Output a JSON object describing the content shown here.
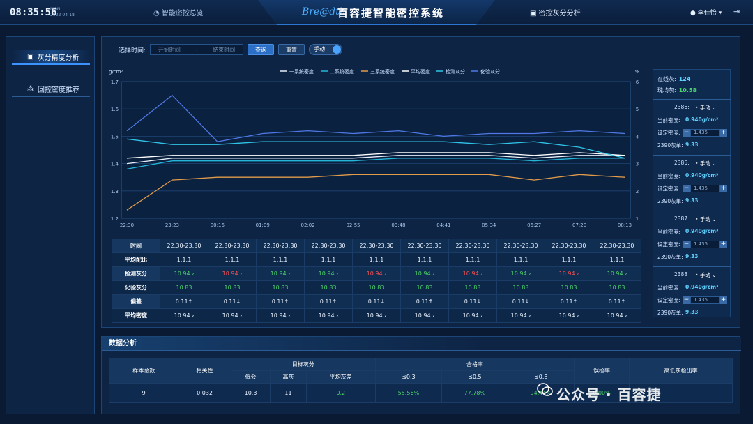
{
  "header": {
    "time": "08:35:56",
    "day": "MON.",
    "date": "2022-04-18",
    "nav_left": "智能密控总览",
    "logo_text": "Bre@dth",
    "app_title": "百容捷智能密控系统",
    "nav_right": "密控灰分分析",
    "user": "李佳怡"
  },
  "sidebar": {
    "items": [
      {
        "label": "灰分精度分析",
        "icon": "monitor-icon",
        "active": true
      },
      {
        "label": "回控密度推荐",
        "icon": "nodes-icon",
        "active": false
      }
    ]
  },
  "filter": {
    "label": "选择时间:",
    "start_placeholder": "开始时间",
    "separator": "-",
    "end_placeholder": "结束时间",
    "query": "查询",
    "reset": "重置",
    "mode": "手动"
  },
  "chart_data": {
    "type": "line",
    "ylabel": "g/cm³",
    "y2label": "%",
    "ylim": [
      1.2,
      1.7
    ],
    "y2lim": [
      1,
      6
    ],
    "yticks": [
      1.2,
      1.3,
      1.4,
      1.5,
      1.6,
      1.7
    ],
    "y2ticks": [
      1,
      2,
      3,
      4,
      5,
      6
    ],
    "categories": [
      "22:30",
      "23:23",
      "00:16",
      "01:09",
      "02:02",
      "02:55",
      "03:48",
      "04:41",
      "05:34",
      "06:27",
      "07:20",
      "08:13"
    ],
    "series": [
      {
        "name": "一系统密度",
        "color": "#e6eef9",
        "axis": "left",
        "values": [
          1.4,
          1.42,
          1.42,
          1.42,
          1.42,
          1.42,
          1.43,
          1.43,
          1.43,
          1.42,
          1.43,
          1.43
        ]
      },
      {
        "name": "二系统密度",
        "color": "#24b6d9",
        "axis": "left",
        "values": [
          1.38,
          1.41,
          1.41,
          1.41,
          1.41,
          1.41,
          1.42,
          1.42,
          1.42,
          1.41,
          1.42,
          1.42
        ]
      },
      {
        "name": "三系统密度",
        "color": "#e29b4a",
        "axis": "left",
        "values": [
          1.23,
          1.34,
          1.35,
          1.35,
          1.35,
          1.36,
          1.36,
          1.36,
          1.36,
          1.34,
          1.36,
          1.35
        ]
      },
      {
        "name": "平均密度",
        "color": "#ffffff",
        "axis": "left",
        "values": [
          1.42,
          1.43,
          1.43,
          1.43,
          1.43,
          1.43,
          1.44,
          1.44,
          1.44,
          1.43,
          1.44,
          1.43
        ]
      },
      {
        "name": "检测灰分",
        "color": "#30c4e8",
        "axis": "right",
        "values": [
          3.9,
          3.7,
          3.7,
          3.8,
          3.8,
          3.8,
          3.8,
          3.8,
          3.7,
          3.8,
          3.6,
          3.2
        ]
      },
      {
        "name": "化验灰分",
        "color": "#4f78e6",
        "axis": "right",
        "values": [
          4.2,
          5.5,
          3.8,
          4.1,
          4.2,
          4.1,
          4.2,
          4.0,
          4.1,
          4.1,
          4.2,
          4.1
        ]
      }
    ]
  },
  "stats": {
    "online_label": "在线灰:",
    "online_value": "124",
    "lab_label": "瑰均灰:",
    "lab_value": "10.58",
    "machines": [
      {
        "id": "2386:",
        "mode": "手动",
        "cur_label": "当前密度:",
        "cur_value": "0.940g/cm³",
        "set_label": "设定密度:",
        "set_value": "1.435",
        "ash_label": "2390灰单:",
        "ash_value": "9.33"
      },
      {
        "id": "2386:",
        "mode": "手动",
        "cur_label": "当前密度:",
        "cur_value": "0.940g/cm³",
        "set_label": "设定密度:",
        "set_value": "1.435",
        "ash_label": "2390灰单:",
        "ash_value": "9.33"
      },
      {
        "id": "2387",
        "mode": "手动",
        "cur_label": "当前密度:",
        "cur_value": "0.940g/cm³",
        "set_label": "设定密度:",
        "set_value": "1.435",
        "ash_label": "2390灰单:",
        "ash_value": "9.33"
      },
      {
        "id": "2388",
        "mode": "手动",
        "cur_label": "当前密度:",
        "cur_value": "0.940g/cm³",
        "set_label": "设定密度:",
        "set_value": "1.435",
        "ash_label": "2390灰单:",
        "ash_value": "9.33"
      }
    ]
  },
  "grid": {
    "row_headers": [
      "时间",
      "平均配比",
      "检测灰分",
      "化验灰分",
      "偏差",
      "平均密度"
    ],
    "times": [
      "22:30-23:30",
      "22:30-23:30",
      "22:30-23:30",
      "22:30-23:30",
      "22:30-23:30",
      "22:30-23:30",
      "22:30-23:30",
      "22:30-23:30",
      "22:30-23:30",
      "22:30-23:30"
    ],
    "ratio": [
      "1:1:1",
      "1:1:1",
      "1:1:1",
      "1:1:1",
      "1:1:1",
      "1:1:1",
      "1:1:1",
      "1:1:1",
      "1:1:1",
      "1:1:1"
    ],
    "detect": [
      "10.94 ›",
      "10.94 ›",
      "10.94 ›",
      "10.94 ›",
      "10.94 ›",
      "10.94 ›",
      "10.94 ›",
      "10.94 ›",
      "10.94 ›",
      "10.94 ›"
    ],
    "detect_status": [
      "green",
      "red",
      "green",
      "green",
      "red",
      "green",
      "red",
      "green",
      "red",
      "green"
    ],
    "lab": [
      "10.83",
      "10.83",
      "10.83",
      "10.83",
      "10.83",
      "10.83",
      "10.83",
      "10.83",
      "10.83",
      "10.83"
    ],
    "deviation": [
      "0.11↑",
      "0.11↓",
      "0.11↑",
      "0.11↑",
      "0.11↓",
      "0.11↑",
      "0.11↓",
      "0.11↓",
      "0.11↑",
      "0.11↑"
    ],
    "avg": [
      "10.94 ›",
      "10.94 ›",
      "10.94 ›",
      "10.94 ›",
      "10.94 ›",
      "10.94 ›",
      "10.94 ›",
      "10.94 ›",
      "10.94 ›",
      "10.94 ›"
    ]
  },
  "data_analysis": {
    "title": "数据分析",
    "headers": {
      "samples": "样本总数",
      "corr": "相关性",
      "target": "目标灰分",
      "low": "低会",
      "high": "高灰",
      "avg": "平均灰差",
      "pass": "合格率",
      "le03": "≤0.3",
      "le05": "≤0.5",
      "le08": "≤0.8",
      "misjudge": "误检率",
      "detect": "高低灰检出率"
    },
    "row": {
      "samples": "9",
      "corr": "0.032",
      "low": "10.3",
      "high": "11",
      "avg": "0.2",
      "le03": "55.56%",
      "le05": "77.78%",
      "le08": "94.44%",
      "misjudge": "0.00%",
      "detect": ""
    }
  },
  "watermark": "公众号 · 百容捷"
}
